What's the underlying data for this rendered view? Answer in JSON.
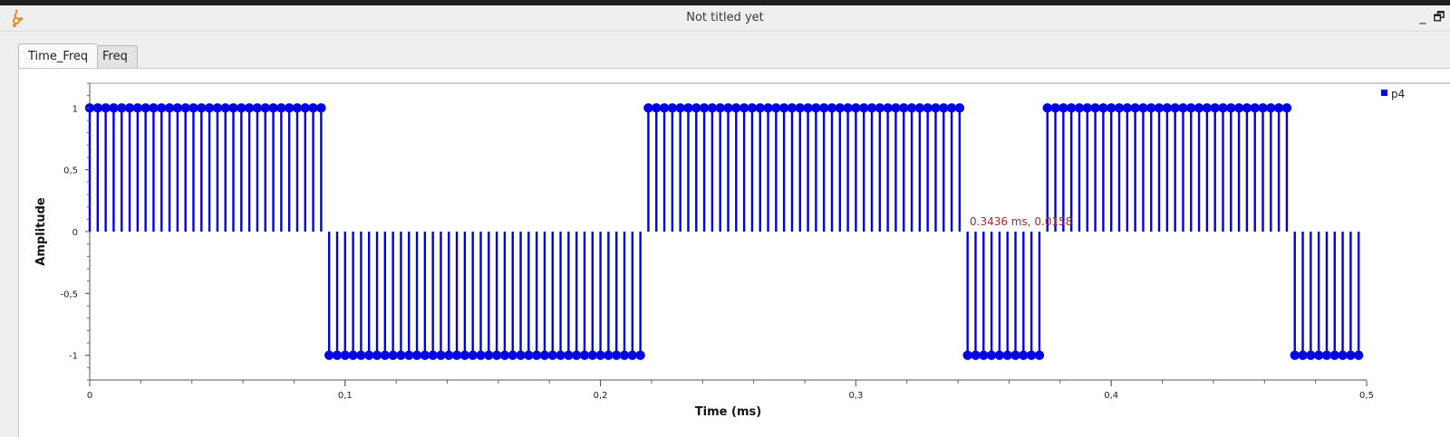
{
  "window": {
    "title": "Not titled yet",
    "minimize_glyph": "_",
    "restore_glyph": "🗗",
    "app_icon": "gnuradio-icon"
  },
  "tabs": [
    {
      "label": "Time_Freq",
      "active": true
    },
    {
      "label": "Freq",
      "active": false
    }
  ],
  "chart_data": {
    "type": "stem",
    "xlabel": "Time (ms)",
    "ylabel": "Amplitude",
    "xlim": [
      0,
      0.5
    ],
    "ylim": [
      -1.2,
      1.2
    ],
    "x_ticks": [
      {
        "value": 0,
        "label": "0"
      },
      {
        "value": 0.1,
        "label": "0,1"
      },
      {
        "value": 0.2,
        "label": "0,2"
      },
      {
        "value": 0.3,
        "label": "0,3"
      },
      {
        "value": 0.4,
        "label": "0,4"
      },
      {
        "value": 0.5,
        "label": "0,5"
      }
    ],
    "y_ticks": [
      {
        "value": 1,
        "label": "1"
      },
      {
        "value": 0.5,
        "label": "0,5"
      },
      {
        "value": 0,
        "label": "0"
      },
      {
        "value": -0.5,
        "label": "-0,5"
      },
      {
        "value": -1,
        "label": "-1"
      }
    ],
    "sample_step_ms": 0.003125,
    "legend_position": "top-right",
    "color": "#0000e6",
    "series": [
      {
        "name": "p4",
        "segments": [
          {
            "x_start": 0,
            "x_end": 0.090625,
            "y": 1
          },
          {
            "x_start": 0.09375,
            "x_end": 0.215625,
            "y": -1
          },
          {
            "x_start": 0.21875,
            "x_end": 0.340625,
            "y": 1
          },
          {
            "x_start": 0.34375,
            "x_end": 0.371875,
            "y": -1
          },
          {
            "x_start": 0.375,
            "x_end": 0.46875,
            "y": 1
          },
          {
            "x_start": 0.471875,
            "x_end": 0.496875,
            "y": -1
          }
        ]
      }
    ],
    "tracker_text": "0.3436 ms, 0.0158"
  }
}
